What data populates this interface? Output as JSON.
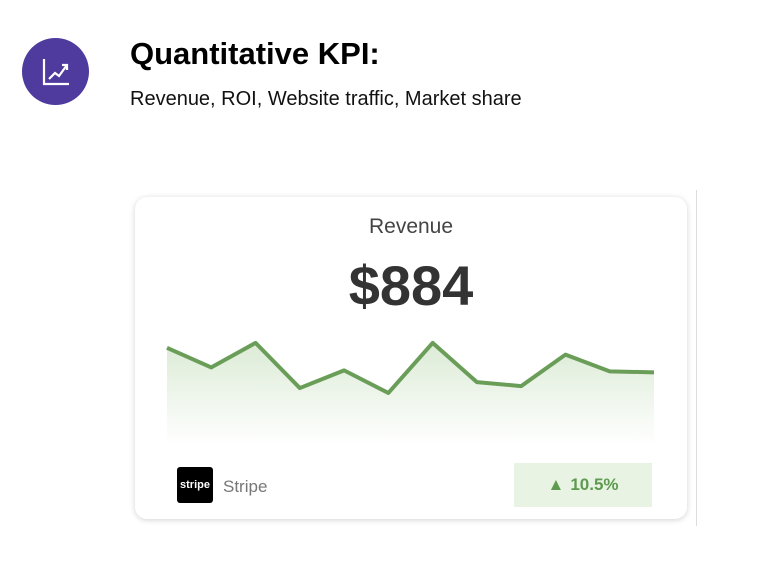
{
  "header": {
    "icon": "chart-trend-up-icon",
    "title": "Quantitative KPI:",
    "subtitle": "Revenue, ROI, Website traffic, Market share",
    "accent": "#4f3a9e"
  },
  "card": {
    "label": "Revenue",
    "value": "$884",
    "source_logo": "stripe",
    "source": "Stripe",
    "change_icon": "triangle-up-icon",
    "change_glyph": "▲",
    "change": "10.5%",
    "line_color": "#6a9e58"
  },
  "chart_data": {
    "type": "area",
    "values": [
      99,
      79,
      104,
      58,
      76,
      53,
      104,
      64,
      60,
      92,
      75,
      74
    ],
    "ylim": [
      0,
      110
    ],
    "grid": false,
    "axes": false
  }
}
